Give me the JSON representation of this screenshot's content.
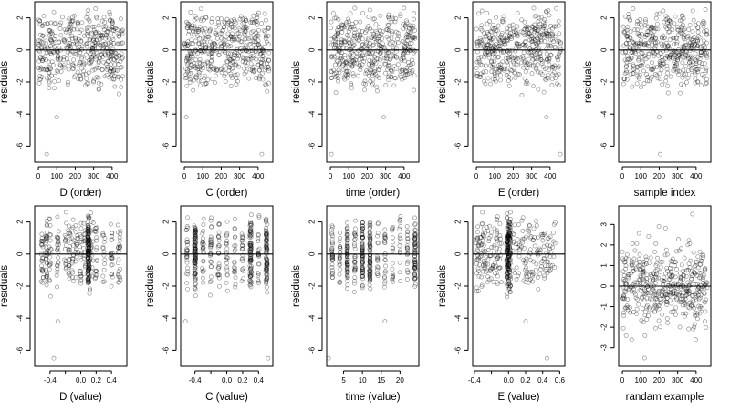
{
  "figure": {
    "n_points": 460
  },
  "chart_data": [
    {
      "id": "p1",
      "type": "scatter",
      "xlabel": "D (order)",
      "ylabel": "residuals",
      "xlim": [
        -20,
        480
      ],
      "ylim": [
        -7.0,
        3.0
      ],
      "xticks": [
        0,
        100,
        200,
        300,
        400
      ],
      "yticks": [
        -6,
        -4,
        -2,
        0,
        2
      ],
      "hline": 0,
      "dist": "uniform",
      "outliers": [
        [
          100,
          -4.2
        ],
        [
          45,
          -6.5
        ]
      ]
    },
    {
      "id": "p2",
      "type": "scatter",
      "xlabel": "C (order)",
      "ylabel": "residuals",
      "xlim": [
        -20,
        480
      ],
      "ylim": [
        -7.0,
        3.0
      ],
      "xticks": [
        0,
        100,
        200,
        300,
        400
      ],
      "yticks": [
        -6,
        -4,
        -2,
        0,
        2
      ],
      "hline": 0,
      "dist": "uniform",
      "outliers": [
        [
          10,
          -4.2
        ],
        [
          420,
          -6.5
        ]
      ]
    },
    {
      "id": "p3",
      "type": "scatter",
      "xlabel": "time (order)",
      "ylabel": "residuals",
      "xlim": [
        -20,
        480
      ],
      "ylim": [
        -7.0,
        3.0
      ],
      "xticks": [
        0,
        100,
        200,
        300,
        400
      ],
      "yticks": [
        -6,
        -4,
        -2,
        0,
        2
      ],
      "hline": 0,
      "dist": "uniform",
      "outliers": [
        [
          290,
          -4.2
        ],
        [
          5,
          -6.5
        ]
      ]
    },
    {
      "id": "p4",
      "type": "scatter",
      "xlabel": "E (order)",
      "ylabel": "residuals",
      "xlim": [
        -20,
        480
      ],
      "ylim": [
        -7.0,
        3.0
      ],
      "xticks": [
        0,
        100,
        200,
        300,
        400
      ],
      "yticks": [
        -6,
        -4,
        -2,
        0,
        2
      ],
      "hline": 0,
      "dist": "uniform",
      "outliers": [
        [
          380,
          -4.2
        ],
        [
          455,
          -6.5
        ]
      ]
    },
    {
      "id": "p5",
      "type": "scatter",
      "xlabel": "sample index",
      "ylabel": "residuals",
      "xlim": [
        -20,
        480
      ],
      "ylim": [
        -7.0,
        3.0
      ],
      "xticks": [
        0,
        100,
        200,
        300,
        400
      ],
      "yticks": [
        -6,
        -4,
        -2,
        0,
        2
      ],
      "hline": 0,
      "dist": "uniform",
      "outliers": [
        [
          200,
          -4.2
        ],
        [
          205,
          -6.5
        ]
      ]
    },
    {
      "id": "p6",
      "type": "scatter",
      "xlabel": "D (value)",
      "ylabel": "residuals",
      "xlim": [
        -0.6,
        0.6
      ],
      "ylim": [
        -7.0,
        3.0
      ],
      "xticks": [
        -0.4,
        -0.2,
        0.0,
        0.2,
        0.4
      ],
      "xticklabels": [
        "-0.4",
        "",
        "0.0",
        "0.2",
        "0.4"
      ],
      "yticks": [
        -6,
        -4,
        -2,
        0,
        2
      ],
      "hline": 0,
      "dist": "d_value",
      "outliers": [
        [
          -0.3,
          -4.2
        ],
        [
          -0.35,
          -6.5
        ]
      ]
    },
    {
      "id": "p7",
      "type": "scatter",
      "xlabel": "C (value)",
      "ylabel": "residuals",
      "xlim": [
        -0.58,
        0.58
      ],
      "ylim": [
        -7.0,
        3.0
      ],
      "xticks": [
        -0.4,
        -0.2,
        0.0,
        0.2,
        0.4
      ],
      "xticklabels": [
        "-0.4",
        "",
        "0.0",
        "0.2",
        "0.4"
      ],
      "yticks": [
        -6,
        -4,
        -2,
        0,
        2
      ],
      "hline": 0,
      "dist": "c_value",
      "outliers": [
        [
          -0.52,
          -4.2
        ],
        [
          0.52,
          -6.5
        ]
      ]
    },
    {
      "id": "p8",
      "type": "scatter",
      "xlabel": "time (value)",
      "ylabel": "residuals",
      "xlim": [
        0.5,
        25
      ],
      "ylim": [
        -7.0,
        3.0
      ],
      "xticks": [
        5,
        10,
        15,
        20
      ],
      "yticks": [
        -6,
        -4,
        -2,
        0,
        2
      ],
      "hline": 0,
      "dist": "time_value",
      "outliers": [
        [
          16,
          -4.2
        ],
        [
          1,
          -6.5
        ]
      ]
    },
    {
      "id": "p9",
      "type": "scatter",
      "xlabel": "E (value)",
      "ylabel": "residuals",
      "xlim": [
        -0.42,
        0.66
      ],
      "ylim": [
        -7.0,
        3.0
      ],
      "xticks": [
        -0.4,
        -0.2,
        0.0,
        0.2,
        0.4,
        0.6
      ],
      "xticklabels": [
        "-0.4",
        "",
        "0.0",
        "0.2",
        "0.4",
        "0.6"
      ],
      "yticks": [
        -6,
        -4,
        -2,
        0,
        2
      ],
      "hline": 0,
      "dist": "e_value",
      "outliers": [
        [
          0.2,
          -4.2
        ],
        [
          0.45,
          -6.5
        ]
      ]
    },
    {
      "id": "p10",
      "type": "scatter",
      "xlabel": "randam example",
      "ylabel": "",
      "xlim": [
        -20,
        480
      ],
      "ylim": [
        -3.9,
        3.9
      ],
      "xticks": [
        0,
        100,
        200,
        300,
        400
      ],
      "yticks": [
        -3,
        -2,
        -1,
        0,
        1,
        2,
        3
      ],
      "hline": 0,
      "dist": "normal",
      "outliers": [
        [
          120,
          -3.5
        ],
        [
          380,
          3.5
        ]
      ]
    }
  ]
}
